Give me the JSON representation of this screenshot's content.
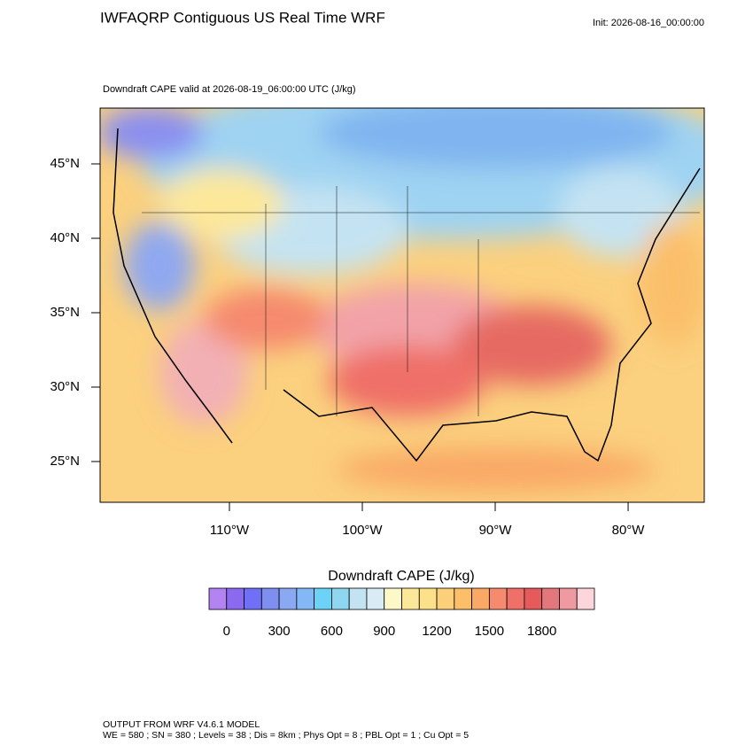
{
  "chart_data": {
    "type": "map",
    "title": "IWFAQRP Contiguous US Real Time WRF",
    "init": "Init: 2026-08-16_00:00:00",
    "subtitle": "Downdraft CAPE valid at 2026-08-19_06:00:00 UTC   (J/kg)",
    "xlim": [
      -119.73,
      -74.27
    ],
    "ylim": [
      22.26,
      48.75
    ],
    "xticks": [
      {
        "value": -110,
        "label": "110°W"
      },
      {
        "value": -100,
        "label": "100°W"
      },
      {
        "value": -90,
        "label": "90°W"
      },
      {
        "value": -80,
        "label": "80°W"
      }
    ],
    "yticks": [
      {
        "value": 25,
        "label": "25°N"
      },
      {
        "value": 30,
        "label": "30°N"
      },
      {
        "value": 35,
        "label": "35°N"
      },
      {
        "value": 40,
        "label": "40°N"
      },
      {
        "value": 45,
        "label": "45°N"
      }
    ],
    "colorbar": {
      "title": "Downdraft CAPE  (J/kg)",
      "levels": [
        0,
        100,
        200,
        300,
        400,
        500,
        600,
        700,
        800,
        900,
        1000,
        1100,
        1200,
        1300,
        1400,
        1500,
        1600,
        1700,
        1800,
        1900,
        2000
      ],
      "colors": [
        "#b383f2",
        "#8b6af0",
        "#6f70f5",
        "#7e8ff0",
        "#8aa9f2",
        "#83b7f5",
        "#6cd3f7",
        "#8fd6f0",
        "#c4e3f2",
        "#d9ecf5",
        "#fdf8c8",
        "#fde89a",
        "#fde08a",
        "#fcd07a",
        "#fbbf6a",
        "#f9a965",
        "#f58a6e",
        "#ef7068",
        "#e55a5a",
        "#e2787c",
        "#ef9aa0",
        "#fcd6da"
      ],
      "ticks": [
        0,
        300,
        600,
        900,
        1200,
        1500,
        1800
      ]
    },
    "footer": [
      "OUTPUT FROM WRF V4.6.1 MODEL",
      "WE = 580 ; SN = 380 ; Levels = 38 ; Dis = 8km ; Phys Opt = 8 ; PBL Opt = 1 ; Cu Opt = 5"
    ]
  }
}
